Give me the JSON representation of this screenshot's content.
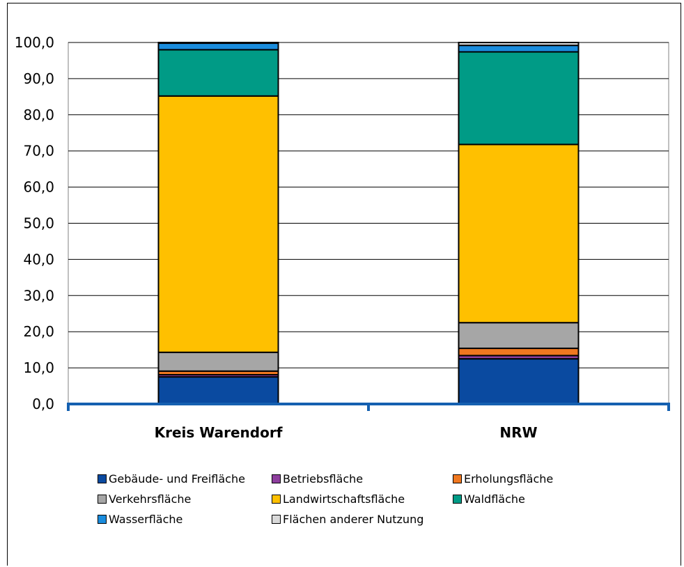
{
  "chart_data": {
    "type": "bar",
    "stacked": true,
    "categories": [
      "Kreis Warendorf",
      "NRW"
    ],
    "ylim": [
      0,
      100
    ],
    "yticks": [
      "0,0",
      "10,0",
      "20,0",
      "30,0",
      "40,0",
      "50,0",
      "60,0",
      "70,0",
      "80,0",
      "90,0",
      "100,0"
    ],
    "grid": true,
    "legend_position": "bottom",
    "series": [
      {
        "name": "Gebäude- und Freifläche",
        "color": "#0a4aa0",
        "values": [
          7.5,
          12.5
        ]
      },
      {
        "name": "Betriebsfläche",
        "color": "#8e3f9e",
        "values": [
          0.6,
          0.9
        ]
      },
      {
        "name": "Erholungsfläche",
        "color": "#f07820",
        "values": [
          1.0,
          2.0
        ]
      },
      {
        "name": "Verkehrsfläche",
        "color": "#a6a6a6",
        "values": [
          5.2,
          7.1
        ]
      },
      {
        "name": "Landwirtschaftsfläche",
        "color": "#ffc000",
        "values": [
          70.9,
          49.3
        ]
      },
      {
        "name": "Waldfläche",
        "color": "#009b86",
        "values": [
          12.8,
          25.6
        ]
      },
      {
        "name": "Wasserfläche",
        "color": "#1a8cdd",
        "values": [
          1.8,
          1.8
        ]
      },
      {
        "name": "Flächen anderer Nutzung",
        "color": "#d9d9d9",
        "values": [
          0.2,
          0.8
        ]
      }
    ]
  }
}
